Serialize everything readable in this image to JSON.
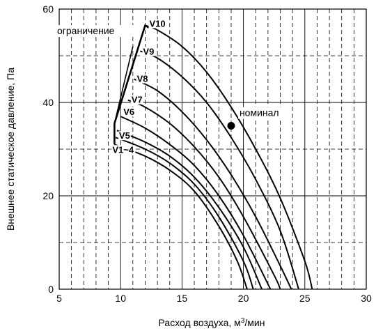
{
  "chart_data": {
    "type": "line",
    "xlabel": "Расход воздуха, м",
    "xlabel_sup": "3",
    "xlabel_suffix": "/мин",
    "ylabel": "Внешнее статическое давление, Па",
    "xlim": [
      5,
      30
    ],
    "ylim": [
      0,
      60
    ],
    "xticks": [
      5,
      10,
      15,
      20,
      25,
      30
    ],
    "yticks": [
      0,
      20,
      40,
      60
    ],
    "x_major_grid": [
      10,
      15,
      20,
      25
    ],
    "x_minor_grid": [
      6,
      7,
      8,
      9,
      11,
      12,
      13,
      14,
      16,
      17,
      18,
      19,
      21,
      22,
      23,
      24,
      26,
      27,
      28,
      29
    ],
    "y_major_grid": [
      20,
      40
    ],
    "y_minor_grid": [
      10,
      30,
      50
    ],
    "grid": true,
    "series": [
      {
        "name": "V1~4",
        "points": [
          [
            9.5,
            31.0
          ],
          [
            12,
            28.5
          ],
          [
            14,
            25.5
          ],
          [
            16,
            21.0
          ],
          [
            18,
            13.5
          ],
          [
            19.5,
            6.0
          ],
          [
            20.3,
            0
          ]
        ]
      },
      {
        "name": "",
        "points": [
          [
            9.6,
            32.5
          ],
          [
            12,
            30.0
          ],
          [
            14,
            27.0
          ],
          [
            16,
            22.5
          ],
          [
            18,
            15.5
          ],
          [
            20,
            6.0
          ],
          [
            20.8,
            0
          ]
        ]
      },
      {
        "name": "V5",
        "points": [
          [
            9.7,
            34.0
          ],
          [
            12,
            31.5
          ],
          [
            14,
            28.5
          ],
          [
            16,
            24.0
          ],
          [
            18,
            17.5
          ],
          [
            20,
            9.0
          ],
          [
            21.5,
            0
          ]
        ]
      },
      {
        "name": "V6",
        "points": [
          [
            10.0,
            37.0
          ],
          [
            12,
            34.5
          ],
          [
            14,
            31.0
          ],
          [
            16,
            26.5
          ],
          [
            18,
            20.0
          ],
          [
            20,
            11.5
          ],
          [
            22.2,
            0
          ]
        ]
      },
      {
        "name": "V7",
        "points": [
          [
            10.6,
            40.5
          ],
          [
            12,
            39.0
          ],
          [
            14,
            35.5
          ],
          [
            16,
            30.5
          ],
          [
            18,
            24.0
          ],
          [
            20,
            15.5
          ],
          [
            22.5,
            3.0
          ],
          [
            23.0,
            0
          ]
        ]
      },
      {
        "name": "V8",
        "points": [
          [
            11.1,
            45.0
          ],
          [
            13,
            42.5
          ],
          [
            15,
            38.0
          ],
          [
            17,
            32.0
          ],
          [
            19,
            24.5
          ],
          [
            21,
            15.5
          ],
          [
            23,
            5.0
          ],
          [
            23.9,
            0
          ]
        ]
      },
      {
        "name": "V9",
        "points": [
          [
            11.6,
            51.0
          ],
          [
            13,
            49.5
          ],
          [
            15,
            45.5
          ],
          [
            17,
            40.0
          ],
          [
            19,
            32.5
          ],
          [
            21,
            23.5
          ],
          [
            23,
            12.5
          ],
          [
            24.5,
            0
          ]
        ]
      },
      {
        "name": "V10",
        "points": [
          [
            12.0,
            56.5
          ],
          [
            13,
            55.5
          ],
          [
            15,
            52.0
          ],
          [
            17,
            46.5
          ],
          [
            19,
            39.0
          ],
          [
            21,
            30.0
          ],
          [
            23,
            19.5
          ],
          [
            25,
            6.0
          ],
          [
            25.6,
            0
          ]
        ]
      }
    ],
    "limit_line": {
      "name": "ограничение",
      "points": [
        [
          9.5,
          31.0
        ],
        [
          9.5,
          35.5
        ],
        [
          12.0,
          56.5
        ],
        [
          12.3,
          56.0
        ]
      ]
    },
    "limit_spur": [
      [
        9.5,
        35.5
      ],
      [
        11.0,
        52.0
      ]
    ],
    "nominal_point": {
      "label": "номинал",
      "x": 19.0,
      "y": 35.0
    }
  }
}
